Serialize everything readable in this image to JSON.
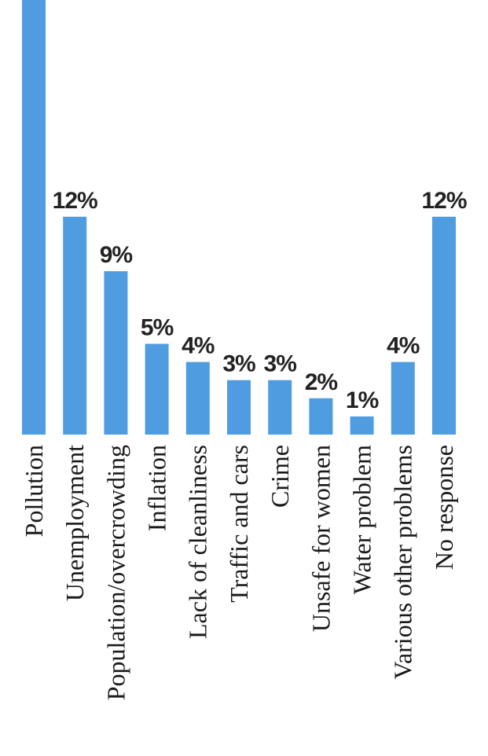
{
  "chart_data": {
    "type": "bar",
    "categories": [
      "Pollution",
      "Unemployment",
      "Population/overcrowding",
      "Inflation",
      "Lack of cleanliness",
      "Traffic and cars",
      "Crime",
      "Unsafe for women",
      "Water problem",
      "Various other problems",
      "No response"
    ],
    "values": [
      null,
      12,
      9,
      5,
      4,
      3,
      3,
      2,
      1,
      4,
      12
    ],
    "value_labels": [
      "",
      "12%",
      "9%",
      "5%",
      "4%",
      "3%",
      "3%",
      "2%",
      "1%",
      "4%",
      "12%"
    ],
    "colors": {
      "bar": "#4f9ce0"
    },
    "grid": false,
    "legend": "none"
  }
}
